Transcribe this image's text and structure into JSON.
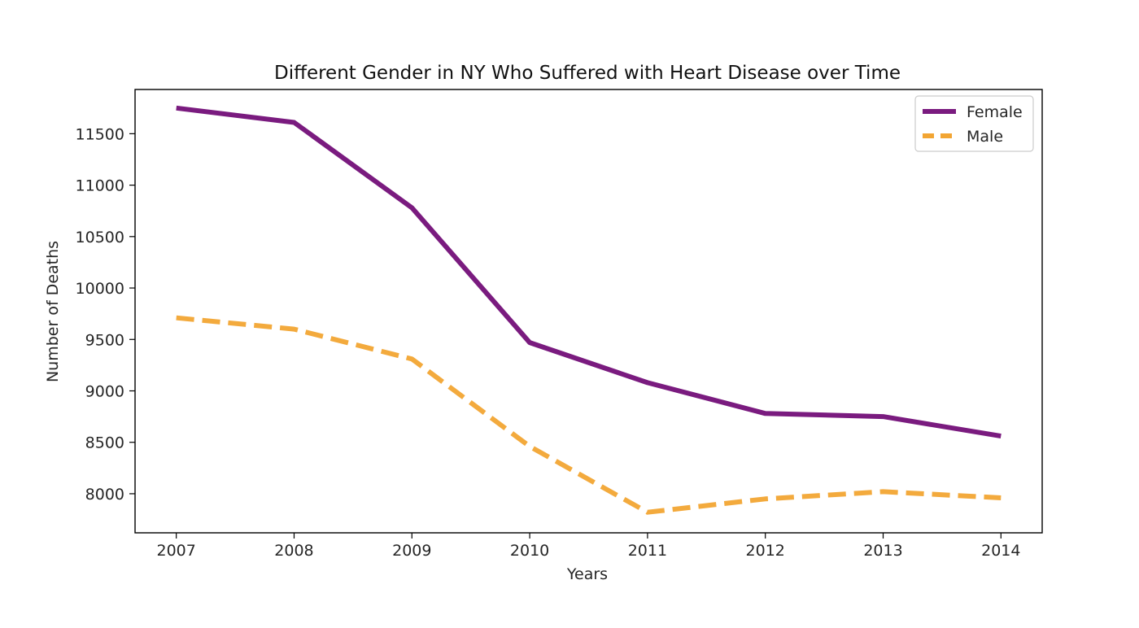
{
  "chart_data": {
    "type": "line",
    "title": "Different Gender in NY Who Suffered with Heart Disease over Time",
    "xlabel": "Years",
    "ylabel": "Number of Deaths",
    "x": [
      2007,
      2008,
      2009,
      2010,
      2011,
      2012,
      2013,
      2014
    ],
    "x_ticks": [
      "2007",
      "2008",
      "2009",
      "2010",
      "2011",
      "2012",
      "2013",
      "2014"
    ],
    "y_ticks": [
      "8000",
      "8500",
      "9000",
      "9500",
      "10000",
      "10500",
      "11000",
      "11500"
    ],
    "ylim": [
      7620,
      11930
    ],
    "xlim": [
      2006.65,
      2014.35
    ],
    "grid": false,
    "legend_position": "top-right",
    "series": [
      {
        "name": "Female",
        "values": [
          11750,
          11610,
          10780,
          9470,
          9080,
          8780,
          8750,
          8560
        ],
        "color": "#7a1b7f",
        "style": "solid"
      },
      {
        "name": "Male",
        "values": [
          9710,
          9600,
          9310,
          8460,
          7820,
          7950,
          8020,
          7960
        ],
        "color": "#f2a533",
        "style": "dashed"
      }
    ]
  }
}
